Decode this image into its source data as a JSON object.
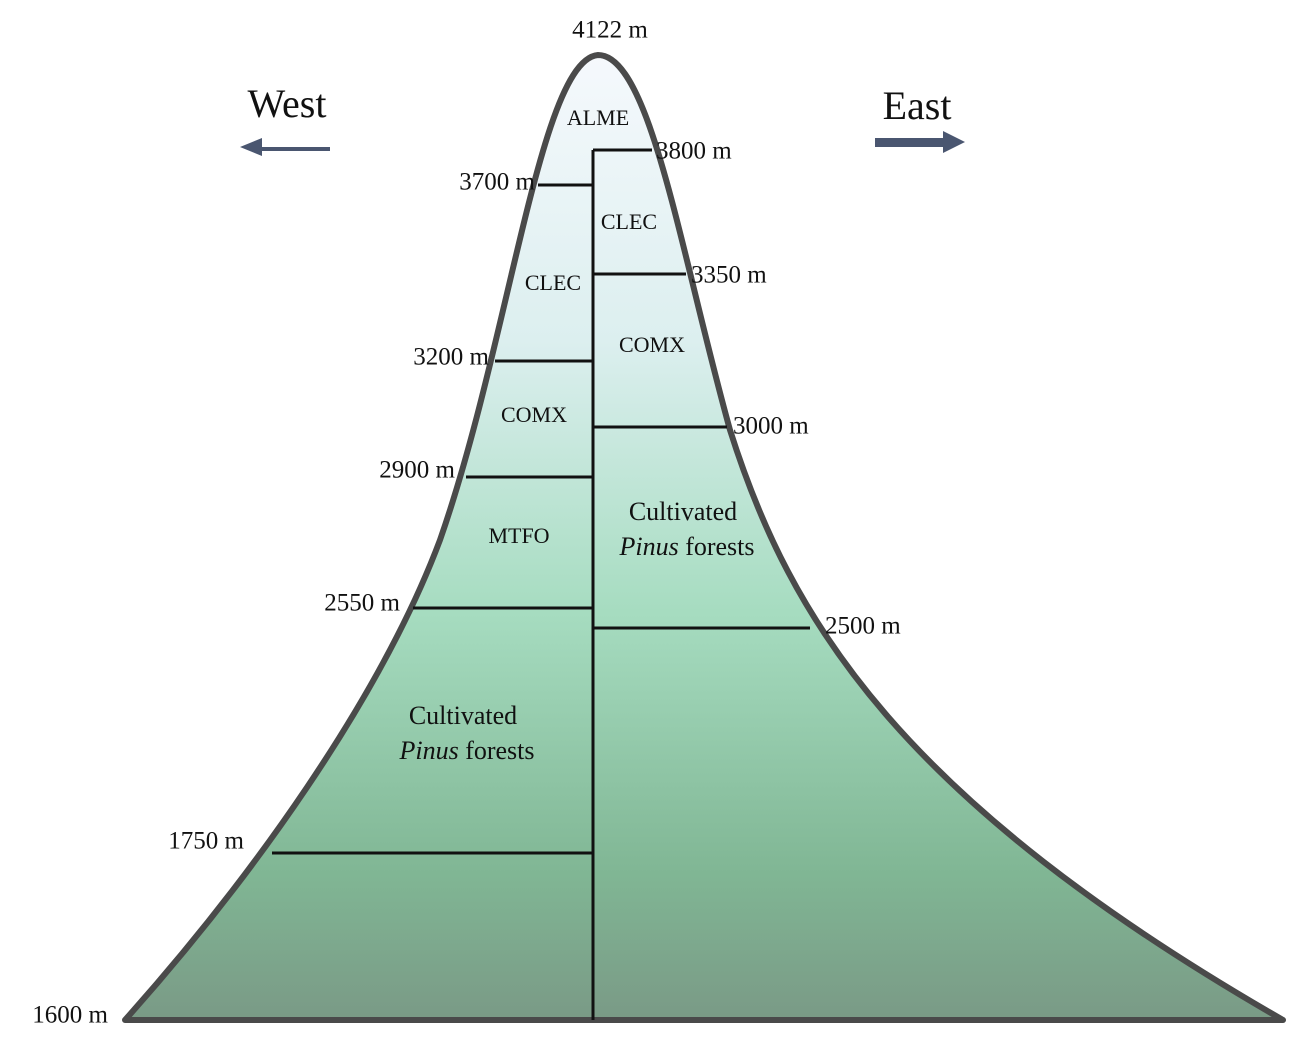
{
  "summit": "4122 m",
  "base": "1600 m",
  "directions": {
    "west": "West",
    "east": "East"
  },
  "west_boundaries": [
    "3700 m",
    "3200 m",
    "2900 m",
    "2550 m",
    "1750 m"
  ],
  "east_boundaries": [
    "3800 m",
    "3350 m",
    "3000 m",
    "2500 m"
  ],
  "zones": {
    "top": "ALME",
    "west": [
      "CLEC",
      "COMX",
      "MTFO"
    ],
    "east": [
      "CLEC",
      "COMX"
    ]
  },
  "cultivated": {
    "west": {
      "first": "Cultivated",
      "genus": "Pinus",
      "rest": "forests"
    },
    "east": {
      "first": "Cultivated",
      "genus": "Pinus",
      "rest": "forests"
    }
  }
}
